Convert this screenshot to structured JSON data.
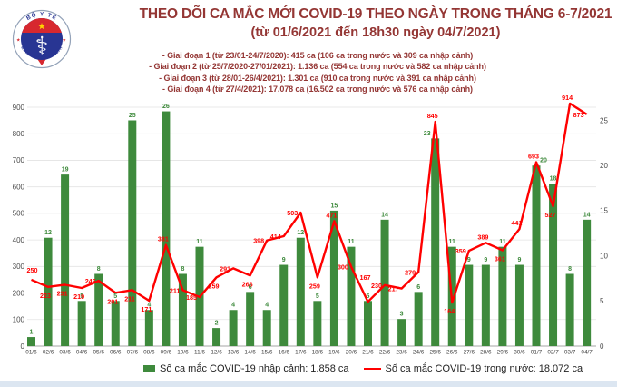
{
  "header": {
    "title": "THEO DÕI CA MẮC MỚI COVID-19 THEO NGÀY TRONG THÁNG 6-7/2021",
    "subtitle": "(từ 01/6/2021 đến 18h30 ngày 04/7/2021)",
    "phases": [
      "- Giai đoạn 1 (từ 23/01-24/7/2020): 415 ca (106 ca trong nước và 309 ca nhập cảnh)",
      "- Giai đoạn 2 (từ 25/7/2020-27/01/2021): 1.136 ca (554 ca trong nước và 582 ca nhập cảnh)",
      "- Giai đoạn 3 (từ 28/01-26/4/2021): 1.301 ca (910 ca trong nước và 391 ca nhập cảnh)",
      "- Giai đoạn 4 (từ 27/4/2021): 17.078 ca (16.502 ca trong nước và 576 ca nhập cảnh)"
    ],
    "logo": {
      "top_text": "BỘ Y TẾ",
      "bottom_text": "MINISTRY OF HEALTH"
    }
  },
  "chart_data": {
    "type": "bar+line",
    "title": "THEO DÕI CA MẮC MỚI COVID-19 THEO NGÀY TRONG THÁNG 6-7/2021",
    "categories": [
      "01/6",
      "02/6",
      "03/6",
      "04/6",
      "05/6",
      "06/6",
      "07/6",
      "08/6",
      "09/6",
      "10/6",
      "11/6",
      "12/6",
      "13/6",
      "14/6",
      "15/6",
      "16/6",
      "17/6",
      "18/6",
      "19/6",
      "20/6",
      "21/6",
      "22/6",
      "23/6",
      "24/6",
      "25/6",
      "26/6",
      "27/6",
      "28/6",
      "29/6",
      "30/6",
      "01/7",
      "02/7",
      "03/7",
      "04/7"
    ],
    "series": [
      {
        "name": "Số ca mắc COVID-19 nhập cảnh",
        "type": "bar",
        "axis": "right",
        "values": [
          1,
          12,
          19,
          5,
          8,
          5,
          25,
          4,
          26,
          8,
          11,
          2,
          4,
          6,
          4,
          9,
          12,
          5,
          15,
          11,
          5,
          14,
          3,
          6,
          23,
          11,
          9,
          9,
          11,
          9,
          20,
          18,
          8,
          14
        ]
      },
      {
        "name": "Số ca mắc COVID-19 trong nước",
        "type": "line",
        "axis": "left",
        "values": [
          250,
          223,
          231,
          219,
          246,
          201,
          211,
          171,
          381,
          211,
          185,
          259,
          293,
          266,
          398,
          414,
          503,
          259,
          471,
          300,
          167,
          230,
          217,
          279,
          845,
          164,
          359,
          389,
          361,
          441,
          693,
          527,
          914,
          873
        ]
      }
    ],
    "left_axis": {
      "min": 0,
      "max": 900,
      "step": 100
    },
    "right_axis": {
      "min": 0,
      "max": 25,
      "step": 5
    },
    "grid": "horizontal",
    "legend_position": "bottom",
    "line_label_placement": [
      "a",
      "b",
      "b",
      "b",
      "m",
      "b",
      "b",
      "b",
      "a",
      "m",
      "m",
      "b",
      "m",
      "b",
      "m",
      "m",
      "m",
      "b",
      "a",
      "m",
      "h",
      "m",
      "m",
      "m",
      "a",
      "b",
      "m",
      "a",
      "b",
      "a",
      "a",
      "b",
      "a",
      "m"
    ],
    "bar_label_offsets": {
      "24": -9,
      "30": 8
    }
  },
  "legend": {
    "bar_label": "Số ca mắc COVID-19 nhập cảnh: 1.858 ca",
    "line_label": "Số ca mắc COVID-19 trong nước: 18.072 ca"
  },
  "colors": {
    "title": "#943634",
    "bar": "#3E8A3C",
    "bar_label": "#3E8A3C",
    "line": "#FF0000",
    "line_label": "#FF0000",
    "grid": "#e3e3e3",
    "axis_text": "#4a4a4a",
    "bottom_strip": "#dce6f1",
    "logo_blue": "#283593",
    "logo_red": "#d7282f",
    "logo_star": "#ffd400"
  }
}
